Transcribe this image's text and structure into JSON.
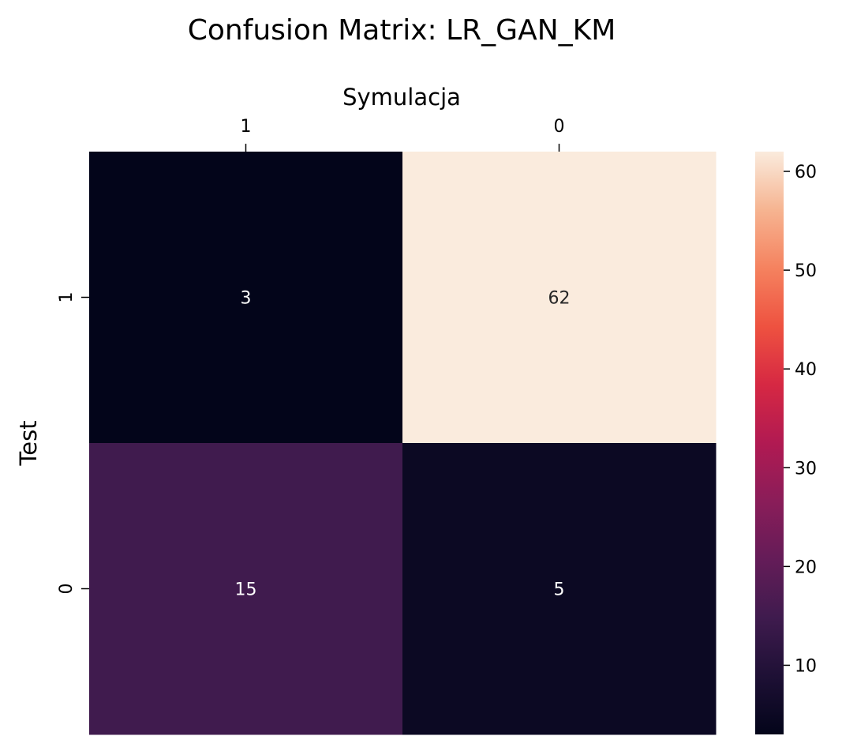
{
  "chart_data": {
    "type": "heatmap",
    "title": "Confusion Matrix: LR_GAN_KM",
    "xlabel": "Symulacja",
    "ylabel": "Test",
    "x_categories": [
      "1",
      "0"
    ],
    "y_categories": [
      "1",
      "0"
    ],
    "values": [
      [
        3,
        62
      ],
      [
        15,
        5
      ]
    ],
    "colormap": "rocket",
    "colorbar": {
      "min": 3,
      "max": 62,
      "ticks": [
        10,
        20,
        30,
        40,
        50,
        60
      ]
    },
    "x_axis_position": "top",
    "annotate_cells": true
  }
}
